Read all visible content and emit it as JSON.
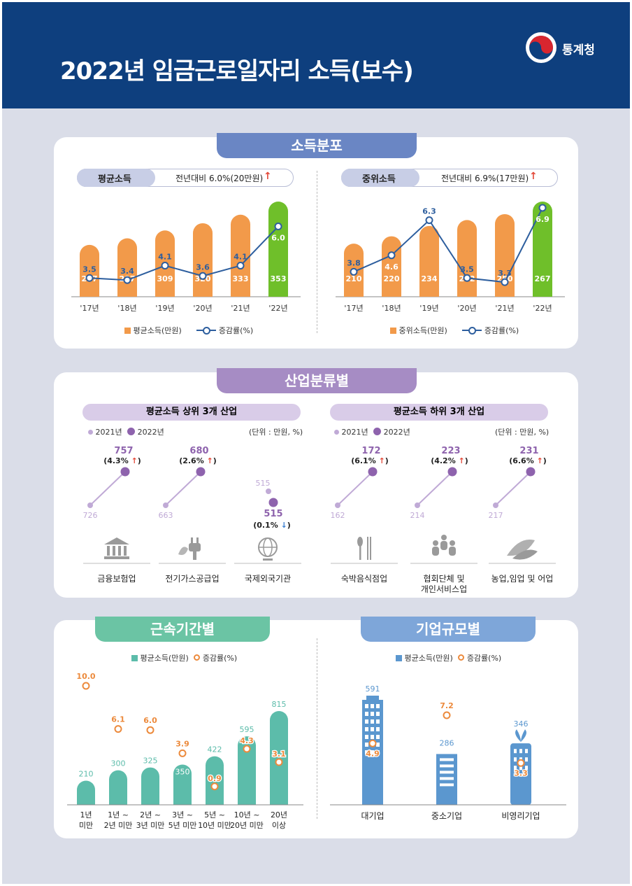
{
  "header": {
    "title": "2022년 임금근로일자리 소득(보수)",
    "agency": "통계청"
  },
  "colors": {
    "header_bg": "#0e3f7e",
    "orange": "#f29a4a",
    "green": "#6fbf2a",
    "line_blue": "#2d5e9e",
    "purple": "#8e63ad",
    "light_purple": "#c0aad6",
    "teal": "#5cbcaa",
    "blue_bar": "#5b97cf",
    "ring_orange": "#ec8a3c",
    "up_red": "#e34a3a",
    "down_blue": "#3b7fd1"
  },
  "income_section": {
    "ribbon": "소득분포",
    "mean": {
      "label": "평균소득",
      "change": "전년대비 6.0%(20만원)",
      "legend_bar": "평균소득(만원)",
      "legend_line": "증감률(%)"
    },
    "median": {
      "label": "중위소득",
      "change": "전년대비 6.9%(17만원)",
      "legend_bar": "중위소득(만원)",
      "legend_line": "증감률(%)"
    }
  },
  "industry_section": {
    "ribbon": "산업분류별",
    "top_label": "평균소득 상위 3개 산업",
    "bottom_label": "평균소득 하위 3개 산업",
    "legend_2021": "2021년",
    "legend_2022": "2022년",
    "unit": "(단위 : 만원, %)",
    "industries": [
      {
        "name": "금융보험업",
        "y2021": 726,
        "y2022": 757,
        "change": "(4.3%",
        "dir": "up",
        "icon": "bank-icon"
      },
      {
        "name": "전기가스공급업",
        "y2021": 663,
        "y2022": 680,
        "change": "(2.6%",
        "dir": "up",
        "icon": "plug-icon"
      },
      {
        "name": "국제외국기관",
        "y2021": 515,
        "y2022": 515,
        "change": "(0.1%",
        "dir": "down",
        "icon": "globe-icon"
      },
      {
        "name": "숙박음식점업",
        "y2021": 162,
        "y2022": 172,
        "change": "(6.1%",
        "dir": "up",
        "icon": "cutlery-icon"
      },
      {
        "name": "협회단체 및",
        "name2": "개인서비스업",
        "y2021": 214,
        "y2022": 223,
        "change": "(4.2%",
        "dir": "up",
        "icon": "people-icon"
      },
      {
        "name": "농업,임업 및 어업",
        "y2021": 217,
        "y2022": 231,
        "change": "(6.6%",
        "dir": "up",
        "icon": "wheat-icon"
      }
    ]
  },
  "tenure_section": {
    "ribbon": "근속기간별",
    "legend_bar": "평균소득(만원)",
    "legend_ring": "증감률(%)"
  },
  "size_section": {
    "ribbon": "기업규모별",
    "legend_bar": "평균소득(만원)",
    "legend_ring": "증감률(%)"
  },
  "chart_data": [
    {
      "type": "bar",
      "title": "평균소득",
      "categories": [
        "'17년",
        "'18년",
        "'19년",
        "'20년",
        "'21년",
        "'22년"
      ],
      "series": [
        {
          "name": "평균소득(만원)",
          "values": [
            287,
            297,
            309,
            320,
            333,
            353
          ]
        },
        {
          "name": "증감률(%)",
          "type": "line",
          "values": [
            3.5,
            3.4,
            4.1,
            3.6,
            4.1,
            6.0
          ]
        }
      ]
    },
    {
      "type": "bar",
      "title": "중위소득",
      "categories": [
        "'17년",
        "'18년",
        "'19년",
        "'20년",
        "'21년",
        "'22년"
      ],
      "series": [
        {
          "name": "중위소득(만원)",
          "values": [
            210,
            220,
            234,
            242,
            250,
            267
          ]
        },
        {
          "name": "증감률(%)",
          "type": "line",
          "values": [
            3.8,
            4.6,
            6.3,
            3.5,
            3.3,
            6.9
          ]
        }
      ]
    },
    {
      "type": "bar",
      "title": "근속기간별",
      "categories": [
        "1년 미만",
        "1년 ~ 2년 미만",
        "2년 ~ 3년 미만",
        "3년 ~ 5년 미만",
        "5년 ~ 10년 미만",
        "10년 ~ 20년 미만",
        "20년 이상"
      ],
      "category_lines": [
        [
          "1년",
          "미만"
        ],
        [
          "1년 ~",
          "2년 미만"
        ],
        [
          "2년 ~",
          "3년 미만"
        ],
        [
          "3년 ~",
          "5년 미만"
        ],
        [
          "5년 ~",
          "10년 미만"
        ],
        [
          "10년 ~",
          "20년 미만"
        ],
        [
          "20년",
          "이상"
        ]
      ],
      "series": [
        {
          "name": "평균소득(만원)",
          "values": [
            210,
            300,
            325,
            350,
            422,
            595,
            815
          ]
        },
        {
          "name": "증감률(%)",
          "type": "scatter",
          "values": [
            10.0,
            6.1,
            6.0,
            3.9,
            0.9,
            4.3,
            3.1
          ]
        }
      ]
    },
    {
      "type": "bar",
      "title": "기업규모별",
      "categories": [
        "대기업",
        "중소기업",
        "비영리기업"
      ],
      "series": [
        {
          "name": "평균소득(만원)",
          "values": [
            591,
            286,
            346
          ]
        },
        {
          "name": "증감률(%)",
          "type": "scatter",
          "values": [
            4.9,
            7.2,
            3.3
          ]
        }
      ]
    }
  ]
}
